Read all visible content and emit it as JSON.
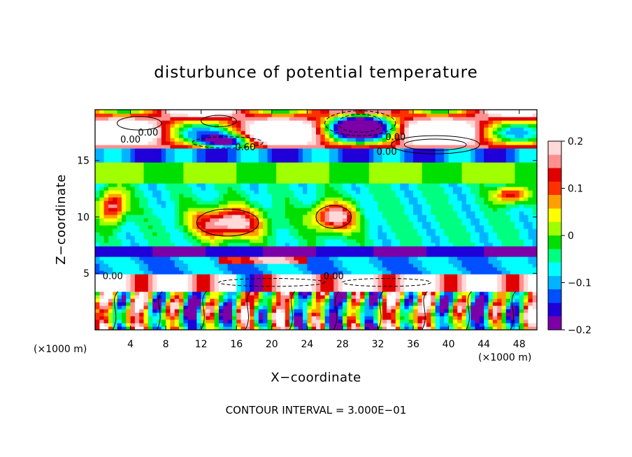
{
  "chart_data": {
    "type": "heatmap",
    "title": "disturbunce of potential temperature",
    "xlabel": "X−coordinate",
    "ylabel": "Z−coordinate",
    "x_unit": "(×1000 m)",
    "y_unit": "(×1000 m)",
    "xlim": [
      0,
      50
    ],
    "ylim": [
      0,
      19.5
    ],
    "x_ticks": [
      4,
      8,
      12,
      16,
      20,
      24,
      28,
      32,
      36,
      40,
      44,
      48
    ],
    "y_ticks": [
      5,
      10,
      15
    ],
    "colorbar": {
      "min": -0.2,
      "max": 0.2,
      "ticks": [
        "0.2",
        "0.1",
        "0",
        "−0.1",
        "−0.2"
      ],
      "tick_values": [
        0.2,
        0.1,
        0,
        -0.1,
        -0.2
      ],
      "colors": [
        "#7b00a8",
        "#1f00d8",
        "#0050ff",
        "#00b4ff",
        "#00ffff",
        "#00ff80",
        "#00e000",
        "#a0ff00",
        "#ffff00",
        "#ffa000",
        "#ff3000",
        "#e00000",
        "#ff9090",
        "#ffd8d8"
      ]
    },
    "layers": [
      {
        "z": [
          0,
          3.5
        ],
        "pattern": "vertical oscillation, alternating strong positive and negative"
      },
      {
        "z": [
          3.5,
          5
        ],
        "pattern": "mostly strong positive (white), dashed negative contours"
      },
      {
        "z": [
          5,
          6.5
        ],
        "pattern": "negative (blue)"
      },
      {
        "z": [
          6.5,
          7.5
        ],
        "pattern": "strongly negative (dark blue)"
      },
      {
        "z": [
          7.5,
          13
        ],
        "pattern": "slightly negative to neutral with scattered positive patches"
      },
      {
        "z": [
          13,
          15
        ],
        "pattern": "near zero (green)"
      },
      {
        "z": [
          15,
          16
        ],
        "pattern": "negative band"
      },
      {
        "z": [
          16,
          19.5
        ],
        "pattern": "large positive lobes with negative cells near x=28-34"
      }
    ],
    "contour_labels": [
      "0.00",
      "0.00",
      "0.60",
      "0.00",
      "0.00",
      "0.00",
      "0.00"
    ],
    "contour_interval_text": "CONTOUR INTERVAL = 3.000E−01"
  }
}
